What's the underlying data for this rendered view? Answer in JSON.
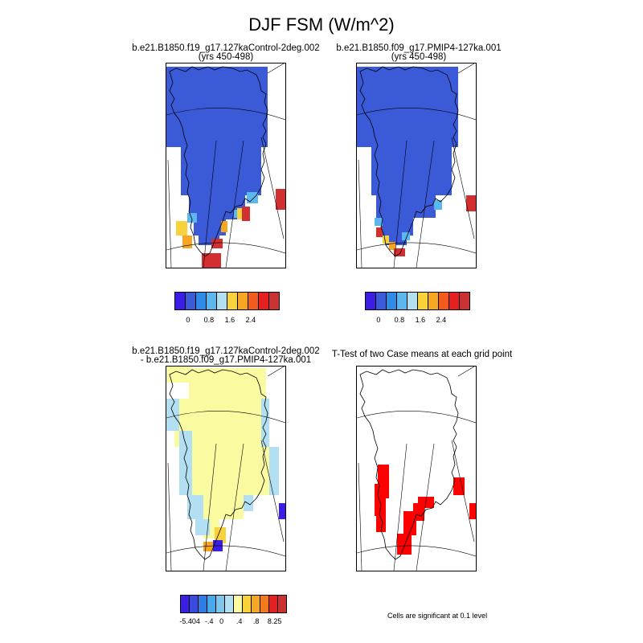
{
  "title": "DJF FSM (W/m^2)",
  "panels": [
    {
      "id": "control",
      "title_line1": "b.e21.B1850.f19_g17.127kaControl-2deg.002",
      "title_line2": "(yrs 450-498)"
    },
    {
      "id": "pmip4",
      "title_line1": "b.e21.B1850.f09_g17.PMIP4-127ka.001",
      "title_line2": "(yrs 450-498)"
    },
    {
      "id": "difference",
      "title_line1": "b.e21.B1850.f19_g17.127kaControl-2deg.002",
      "title_line2": "- b.e21.B1850.f09_g17.PMIP4-127ka.001"
    },
    {
      "id": "ttest",
      "title_line1": "T-Test of two Case means at each grid point",
      "title_line2": ""
    }
  ],
  "colorbars": {
    "main": {
      "colors": [
        "#3a1ee6",
        "#3a5ad8",
        "#2e8ce8",
        "#5ab8ee",
        "#b2e0f2",
        "#f8d23a",
        "#f6a623",
        "#f25a1e",
        "#e62020",
        "#c83232"
      ],
      "tick_labels": [
        "0",
        "0.8",
        "1.6",
        "2.4"
      ]
    },
    "difference": {
      "colors": [
        "#3a1ee6",
        "#3a4ade",
        "#2e7ce6",
        "#48a8ea",
        "#7cc6ee",
        "#b2e0f2",
        "#fafaa0",
        "#f8d23a",
        "#f6a623",
        "#f27a1e",
        "#e62020",
        "#c83232"
      ],
      "tick_labels": [
        "-5.404",
        "-.4",
        "0",
        ".4",
        ".8",
        "8.25"
      ]
    }
  },
  "significance_note": "Cells are significant at 0.1 level",
  "map_colors": {
    "ice_blue": "#3a5ad8",
    "light_blue": "#5ab8ee",
    "yellow": "#f8d23a",
    "orange": "#f6a623",
    "red": "#d23030",
    "pale_yellow": "#fafaa0",
    "pale_blue": "#b2e0f2",
    "purple": "#3a1ee6",
    "signif_red": "#ff0000"
  }
}
